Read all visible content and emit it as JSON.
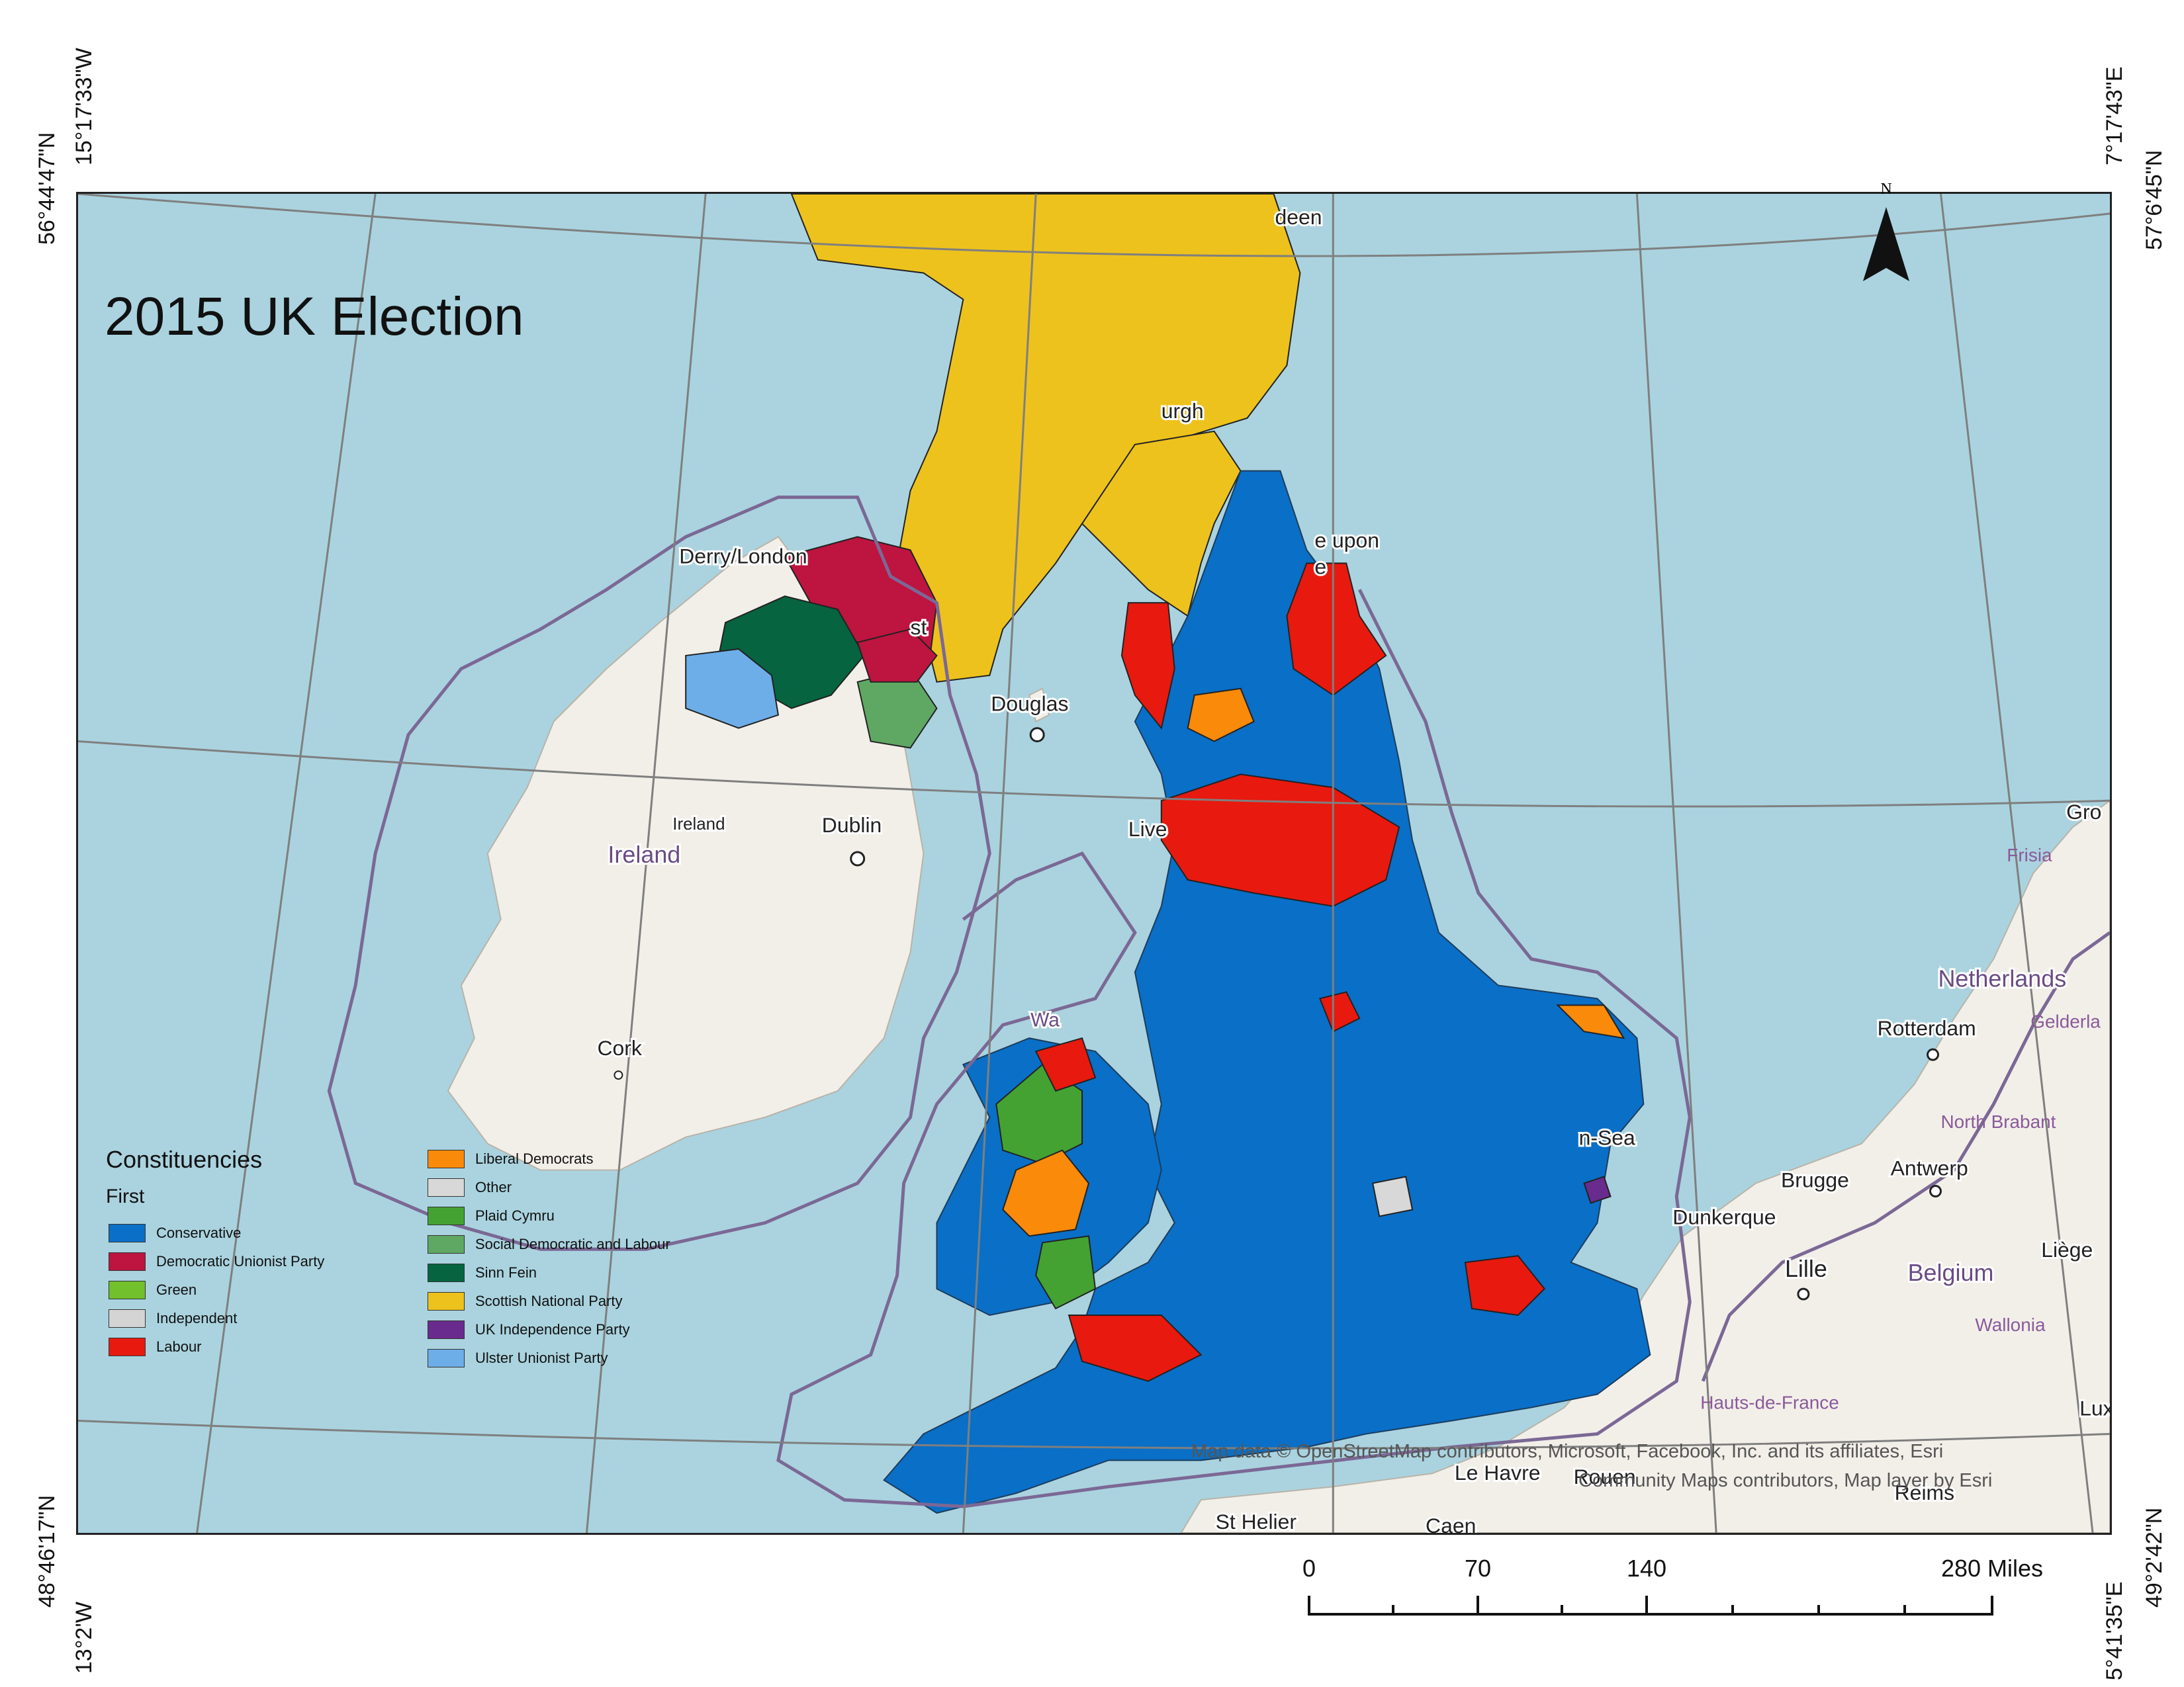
{
  "title": "2015 UK Election",
  "coordinates": {
    "top_left_lat": "56°44'47\"N",
    "top_left_lon": "15°17'33\"W",
    "top_right_lon": "7°17'43\"E",
    "top_right_lat": "57°6'45\"N",
    "bottom_left_lat": "48°46'17\"N",
    "bottom_left_lon": "13°2'W",
    "bottom_right_lat": "49°2'42\"N",
    "bottom_right_lon": "5°41'35\"E"
  },
  "north_arrow": {
    "label": "N",
    "icon": "north-arrow-icon"
  },
  "places": {
    "aberdeen": "deen",
    "edinburgh": "urgh",
    "newcastle": "e upon",
    "newcastle_2": "e",
    "derry": "Derry/London",
    "belfast": "st",
    "douglas": "Douglas",
    "ireland_small": "Ireland",
    "ireland": "Ireland",
    "dublin": "Dublin",
    "liverpool": "Live",
    "wales": "Wa",
    "cork": "Cork",
    "southend": "n-Sea",
    "frisia": "Frisia",
    "groningen": "Gro",
    "netherlands": "Netherlands",
    "rotterdam": "Rotterdam",
    "gelderland": "Gelderla",
    "north_brabant": "North Brabant",
    "antwerp": "Antwerp",
    "brugge": "Brugge",
    "dunkerque": "Dunkerque",
    "lille": "Lille",
    "belgium": "Belgium",
    "liege": "Liège",
    "wallonia": "Wallonia",
    "hauts_de_france": "Hauts-de-France",
    "lux": "Lux",
    "le_havre": "Le Havre",
    "rouen": "Rouen",
    "reims": "Reims",
    "st_helier": "St Helier",
    "caen": "Caen"
  },
  "legend": {
    "heading": "Constituencies",
    "subheading": "First",
    "column1": [
      {
        "label": "Conservative",
        "color": "#0a6fc6"
      },
      {
        "label": "Democratic Unionist Party",
        "color": "#bd1440"
      },
      {
        "label": "Green",
        "color": "#72c02c"
      },
      {
        "label": "Independent",
        "color": "#d4d4d4"
      },
      {
        "label": "Labour",
        "color": "#e8190f"
      }
    ],
    "column2": [
      {
        "label": "Liberal Democrats",
        "color": "#f98a0a"
      },
      {
        "label": "Other",
        "color": "#d8d8d8"
      },
      {
        "label": "Plaid Cymru",
        "color": "#44a233"
      },
      {
        "label": "Social Democratic and Labour",
        "color": "#5fa863"
      },
      {
        "label": "Sinn Fein",
        "color": "#066440"
      },
      {
        "label": "Scottish National Party",
        "color": "#edc21d"
      },
      {
        "label": "UK Independence Party",
        "color": "#6a2b8e"
      },
      {
        "label": "Ulster Unionist Party",
        "color": "#6daee8"
      }
    ]
  },
  "attribution": {
    "line1": "Map data © OpenStreetMap contributors, Microsoft, Facebook, Inc. and its affiliates, Esri",
    "line2": "Community Maps contributors, Map layer by Esri"
  },
  "scalebar": {
    "labels": [
      "0",
      "70",
      "140",
      "280 Miles"
    ]
  },
  "colors": {
    "sea": "#aad3df",
    "land": "#f2efe9",
    "boundary": "#7b6895"
  }
}
